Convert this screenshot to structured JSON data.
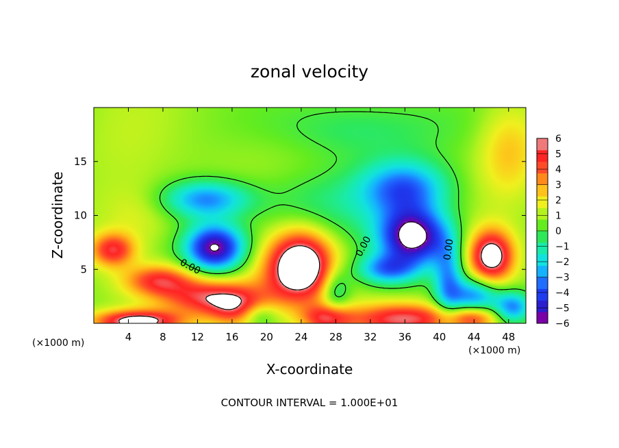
{
  "chart_data": {
    "type": "heatmap",
    "title": "zonal velocity",
    "xlabel": "X-coordinate",
    "ylabel": "Z-coordinate",
    "x_unit": "(×1000 m)",
    "xlim": [
      0,
      50
    ],
    "ylim": [
      0,
      20
    ],
    "x_ticks": [
      4,
      8,
      12,
      16,
      20,
      24,
      28,
      32,
      36,
      40,
      44,
      48
    ],
    "y_ticks": [
      5,
      10,
      15
    ],
    "colorbar": {
      "min": -6,
      "max": 6,
      "ticks": [
        6,
        5,
        4,
        3,
        2,
        1,
        0,
        -1,
        -2,
        -3,
        -4,
        -5,
        -6
      ],
      "colors": [
        "#7a00a8",
        "#2a1ed0",
        "#1e3cf0",
        "#1f6eff",
        "#15b2ff",
        "#12e2df",
        "#19ebaa",
        "#2ee85a",
        "#64ec1f",
        "#b4f21e",
        "#f0f01e",
        "#ffc21a",
        "#ff8a1a",
        "#ff4b2a",
        "#ff2424",
        "#f07a7a"
      ]
    },
    "contour_labels": [
      {
        "text": "0.00",
        "x": 11.0,
        "z": 5.0,
        "angle": 28
      },
      {
        "text": "0.00",
        "x": 31.5,
        "z": 7.0,
        "angle": -62
      },
      {
        "text": "0.00",
        "x": 41.4,
        "z": 6.8,
        "angle": -82
      }
    ],
    "footer": "CONTOUR INTERVAL = 1.000E+01",
    "features": [
      {
        "x": 2.2,
        "z": 6.8,
        "sx": 1.8,
        "sy": 1.1,
        "a": 4.5
      },
      {
        "x": 7.5,
        "z": 4.0,
        "sx": 2.8,
        "sy": 1.0,
        "a": 4.0
      },
      {
        "x": 13.5,
        "z": 2.4,
        "sx": 4.0,
        "sy": 1.2,
        "a": 4.6
      },
      {
        "x": 16.5,
        "z": 1.2,
        "sx": 2.2,
        "sy": 1.2,
        "a": 3.0
      },
      {
        "x": 5.0,
        "z": 0.2,
        "sx": 3.5,
        "sy": 0.7,
        "a": 6.0
      },
      {
        "x": 24.0,
        "z": 5.5,
        "sx": 2.6,
        "sy": 2.2,
        "a": 7.0
      },
      {
        "x": 22.0,
        "z": 3.8,
        "sx": 3.4,
        "sy": 2.2,
        "a": 1.5
      },
      {
        "x": 46.0,
        "z": 6.2,
        "sx": 1.8,
        "sy": 1.7,
        "a": 6.5
      },
      {
        "x": 36.0,
        "z": 0.4,
        "sx": 4.5,
        "sy": 1.0,
        "a": 5.0
      },
      {
        "x": 27.0,
        "z": 0.5,
        "sx": 2.0,
        "sy": 0.9,
        "a": 4.0
      },
      {
        "x": 44.0,
        "z": 0.5,
        "sx": 2.0,
        "sy": 0.8,
        "a": 3.5
      },
      {
        "x": 5.0,
        "z": 10.0,
        "sx": 3.0,
        "sy": 2.0,
        "a": 1.0
      },
      {
        "x": 48.0,
        "z": 16.0,
        "sx": 2.5,
        "sy": 3.0,
        "a": 2.0
      },
      {
        "x": 4.0,
        "z": 16.0,
        "sx": 4.0,
        "sy": 4.0,
        "a": 0.5
      },
      {
        "x": 14.0,
        "z": 7.0,
        "sx": 2.4,
        "sy": 1.5,
        "a": -7.0
      },
      {
        "x": 13.0,
        "z": 11.5,
        "sx": 3.5,
        "sy": 1.2,
        "a": -4.0
      },
      {
        "x": 37.0,
        "z": 8.0,
        "sx": 2.8,
        "sy": 1.8,
        "a": -7.5
      },
      {
        "x": 36.0,
        "z": 12.5,
        "sx": 3.5,
        "sy": 1.8,
        "a": -4.5
      },
      {
        "x": 34.0,
        "z": 5.0,
        "sx": 2.5,
        "sy": 1.0,
        "a": -4.0
      },
      {
        "x": 41.0,
        "z": 4.0,
        "sx": 1.2,
        "sy": 2.5,
        "a": -3.5
      },
      {
        "x": 44.0,
        "z": 2.5,
        "sx": 2.0,
        "sy": 1.2,
        "a": -4.0
      },
      {
        "x": 28.0,
        "z": 3.0,
        "sx": 1.2,
        "sy": 1.5,
        "a": -2.5
      },
      {
        "x": 19.0,
        "z": 0.8,
        "sx": 1.5,
        "sy": 0.8,
        "a": -2.0
      },
      {
        "x": 48.5,
        "z": 1.5,
        "sx": 1.5,
        "sy": 1.0,
        "a": -4.0
      },
      {
        "x": 26.0,
        "z": 11.0,
        "sx": 6.0,
        "sy": 2.5,
        "a": -1.5
      },
      {
        "x": 30.0,
        "z": 18.0,
        "sx": 8.0,
        "sy": 2.0,
        "a": -1.5
      },
      {
        "x": 22.0,
        "z": 16.0,
        "sx": 5.0,
        "sy": 3.0,
        "a": 0.5
      }
    ]
  }
}
